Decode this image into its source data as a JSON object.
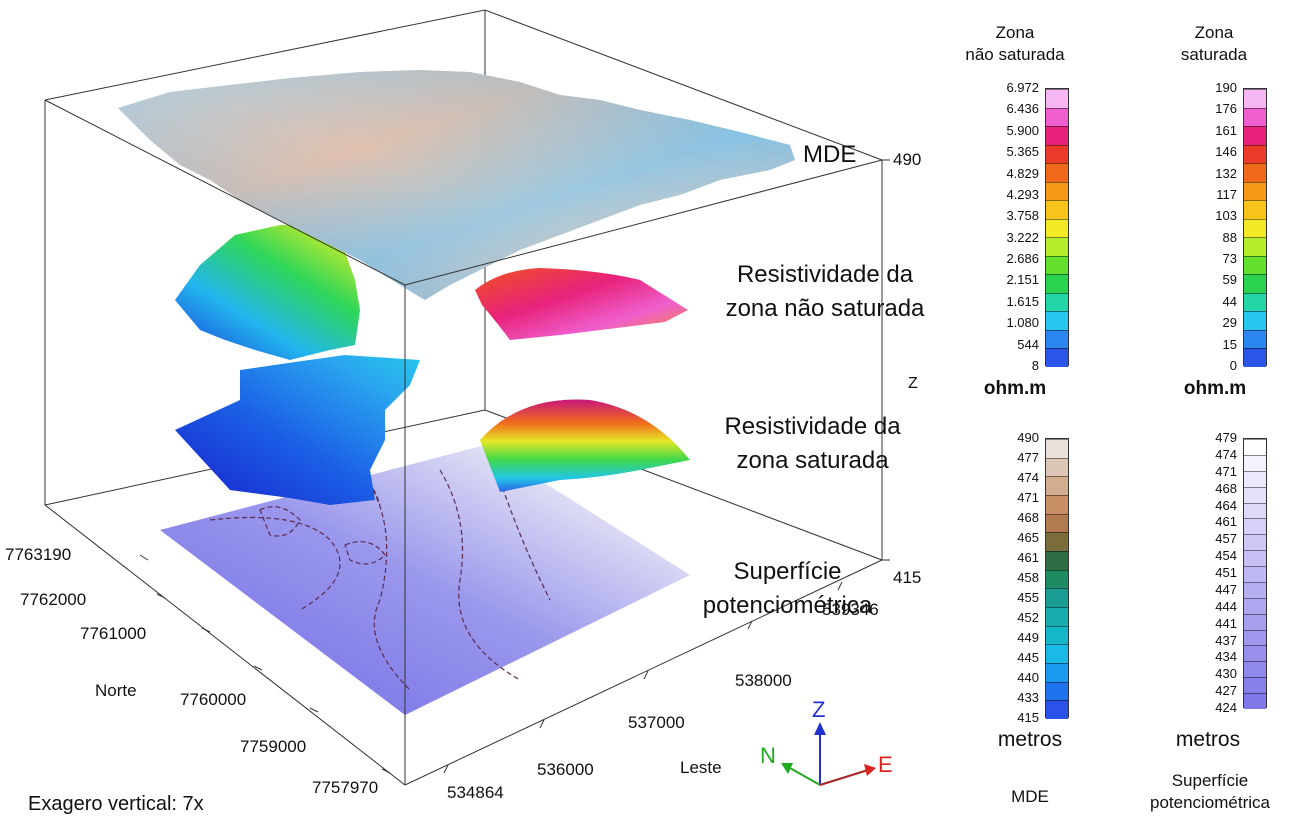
{
  "labels": {
    "mde": "MDE",
    "unsat": [
      "Resistividade da",
      "zona não saturada"
    ],
    "sat": [
      "Resistividade da",
      "zona saturada"
    ],
    "pot": [
      "Superfície",
      "potenciométrica"
    ],
    "exag": "Exagero vertical: 7x",
    "axis_z": "Z",
    "axis_norte": "Norte",
    "axis_leste": "Leste",
    "z_top": "490",
    "z_bottom": "415"
  },
  "norte_ticks": [
    "7763190",
    "7762000",
    "7761000",
    "7760000",
    "7759000",
    "7757970"
  ],
  "leste_ticks": [
    "534864",
    "536000",
    "537000",
    "538000",
    "539346"
  ],
  "compass": {
    "n": "N",
    "e": "E",
    "z": "Z",
    "n_color": "#22aa22",
    "e_color": "#dd2222",
    "z_color": "#2233cc"
  },
  "colorbars": [
    {
      "id": "unsat",
      "title": [
        "Zona",
        "não saturada"
      ],
      "unit": "ohm.m",
      "ticks": [
        "6.972",
        "6.436",
        "5.900",
        "5.365",
        "4.829",
        "4.293",
        "3.758",
        "3.222",
        "2.686",
        "2.151",
        "1.615",
        "1.080",
        "544",
        "8"
      ],
      "colors": [
        "#f7b7f2",
        "#ef5fce",
        "#e8227a",
        "#ec3a2a",
        "#f06a1c",
        "#f59a18",
        "#f8c41c",
        "#f3e926",
        "#b5ec2c",
        "#63e02e",
        "#2bd24f",
        "#23d6a6",
        "#27c6ee",
        "#2c86f0",
        "#2a55e6"
      ]
    },
    {
      "id": "sat",
      "title": [
        "Zona",
        "saturada"
      ],
      "unit": "ohm.m",
      "ticks": [
        "190",
        "176",
        "161",
        "146",
        "132",
        "117",
        "103",
        "88",
        "73",
        "59",
        "44",
        "29",
        "15",
        "0"
      ],
      "colors": [
        "#f7b7f2",
        "#ef5fce",
        "#e8227a",
        "#ec3a2a",
        "#f06a1c",
        "#f59a18",
        "#f8c41c",
        "#f3e926",
        "#b5ec2c",
        "#63e02e",
        "#2bd24f",
        "#23d6a6",
        "#27c6ee",
        "#2c86f0",
        "#2a55e6"
      ]
    },
    {
      "id": "mde",
      "unit": "metros",
      "footer": [
        "MDE"
      ],
      "ticks": [
        "490",
        "477",
        "474",
        "471",
        "468",
        "465",
        "461",
        "458",
        "455",
        "452",
        "449",
        "445",
        "440",
        "433",
        "415"
      ],
      "colors": [
        "#e9e1dc",
        "#dcc6b5",
        "#d2ad8f",
        "#c88f66",
        "#b27a50",
        "#7b6c3c",
        "#2f6d45",
        "#1f8b63",
        "#1a9c92",
        "#1aacad",
        "#14b6c8",
        "#1ab9e8",
        "#1b99ee",
        "#1f74ee",
        "#2a52e8"
      ]
    },
    {
      "id": "pot",
      "unit": "metros",
      "footer": [
        "Superfície",
        "potenciométrica"
      ],
      "ticks": [
        "479",
        "474",
        "471",
        "468",
        "464",
        "461",
        "457",
        "454",
        "451",
        "447",
        "444",
        "441",
        "437",
        "434",
        "430",
        "427",
        "424"
      ],
      "colors": [
        "#ffffff",
        "#f3f2fd",
        "#ebe9fb",
        "#e4e1fa",
        "#dcd9f9",
        "#d5d1f7",
        "#cdc8f6",
        "#c6c0f5",
        "#beb8f3",
        "#b6b0f2",
        "#afa8f0",
        "#a7a0ef",
        "#a098ee",
        "#9890ec",
        "#9088eb",
        "#8880e9",
        "#8078e8"
      ]
    }
  ]
}
